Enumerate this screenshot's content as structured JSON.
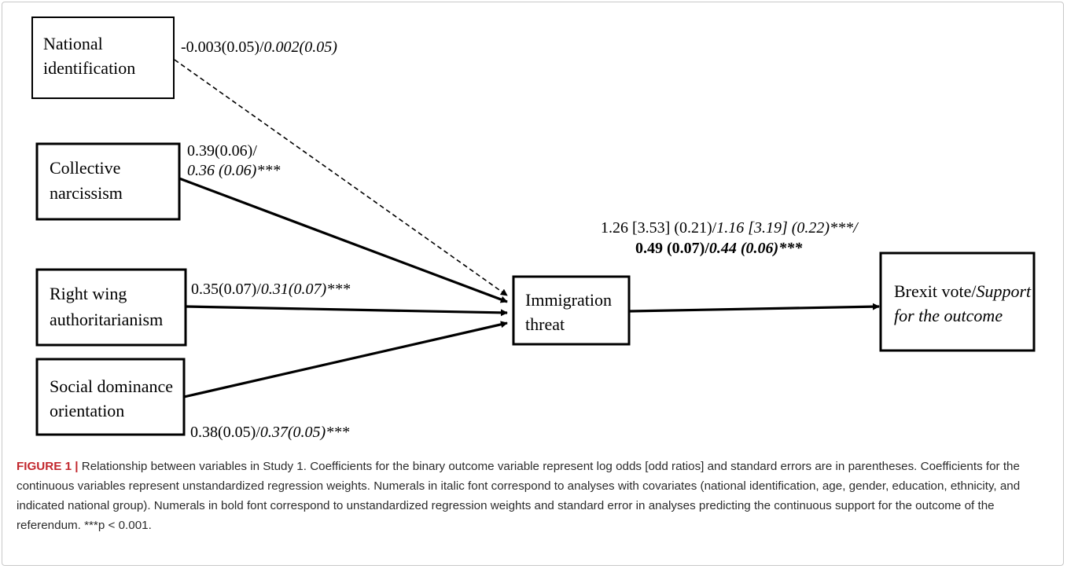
{
  "nodes": {
    "national_identification": [
      "National",
      "identification"
    ],
    "collective_narcissism": [
      "Collective",
      "narcissism"
    ],
    "right_wing_authoritarianism": [
      "Right wing",
      "authoritarianism"
    ],
    "social_dominance_orientation": [
      "Social dominance",
      "orientation"
    ],
    "immigration_threat": [
      "Immigration",
      "threat"
    ],
    "brexit_vote": {
      "line1_normal": "Brexit vote/",
      "line1_italic": "Support",
      "line2_italic": "for the outcome"
    }
  },
  "paths": {
    "national_identification": {
      "normal": "-0.003(0.05)/",
      "italic": "0.002(0.05)",
      "style": "dashed"
    },
    "collective_narcissism": {
      "line1": "0.39(0.06)/",
      "line2_italic": "0.36 (0.06)",
      "sig": "***",
      "style": "solid"
    },
    "right_wing_authoritarianism": {
      "normal": "0.35(0.07)/",
      "italic": "0.31(0.07)",
      "sig": "***",
      "style": "solid"
    },
    "social_dominance_orientation": {
      "normal": "0.38(0.05)/",
      "italic": "0.37(0.05)",
      "sig": "***",
      "style": "solid"
    },
    "immigration_threat_to_brexit": {
      "line1_normal": "1.26 [3.53] (0.21)/",
      "line1_italic": "1.16 [3.19] (0.22)",
      "line1_sig": "***/",
      "line2_bold": "0.49 (0.07)/",
      "line2_bold_italic": "0.44 (0.06)",
      "line2_sig": "***",
      "style": "solid"
    }
  },
  "caption": {
    "label": "FIGURE 1",
    "separator": "|",
    "text": "Relationship between variables in Study 1. Coefficients for the binary outcome variable represent log odds [odd ratios] and standard errors are in parentheses. Coefficients for the continuous variables represent unstandardized regression weights. Numerals in italic font correspond to analyses with covariates (national identification, age, gender, education, ethnicity, and indicated national group). Numerals in bold font correspond to unstandardized regression weights and standard error in analyses predicting the continuous support for the outcome of the referendum. ",
    "sig_note": "***p < 0.001."
  },
  "colors": {
    "label": "#c2272d",
    "caption_text": "#2b2b2b"
  }
}
